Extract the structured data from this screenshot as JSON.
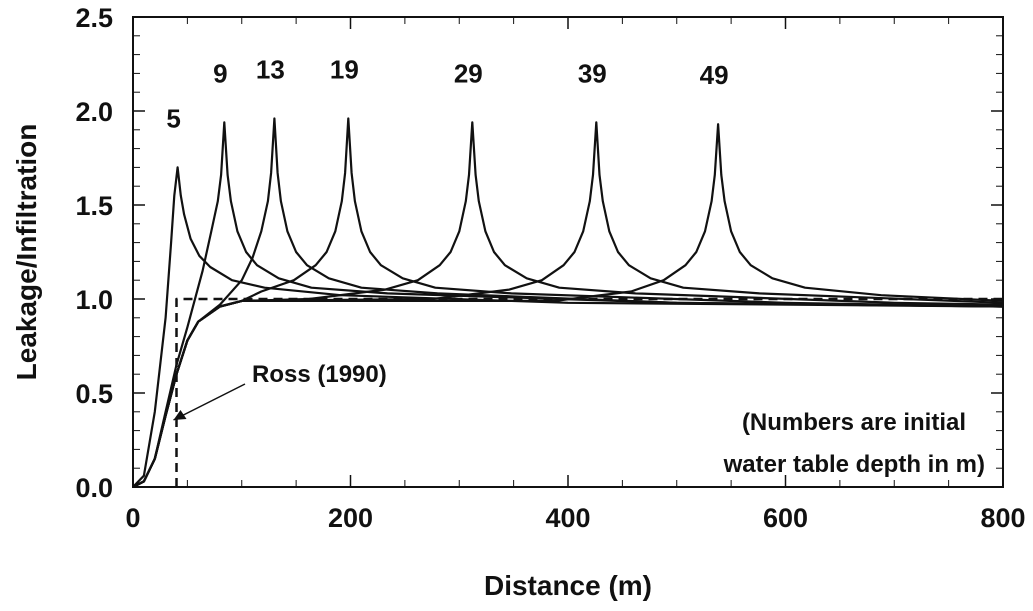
{
  "chart_data": {
    "type": "line",
    "x_label": "Distance (m)",
    "y_label": "Leakage/Infiltration",
    "xlim": [
      0,
      800
    ],
    "xticks": [
      0,
      200,
      400,
      600,
      800
    ],
    "ylim": [
      0,
      2.5
    ],
    "yticks": [
      {
        "value": 0,
        "label": "0.0"
      },
      {
        "value": 0.5,
        "label": "0.5"
      },
      {
        "value": 1,
        "label": "1.0"
      },
      {
        "value": 1.5,
        "label": "1.5"
      },
      {
        "value": 2,
        "label": "2.0"
      },
      {
        "value": 2.5,
        "label": "2.5"
      }
    ],
    "series": [
      {
        "name": "5",
        "color": "#111111",
        "x": [
          0,
          10,
          20,
          30,
          35,
          38,
          41,
          44,
          47,
          53,
          61,
          71,
          91,
          121,
          191,
          400,
          800
        ],
        "values": [
          0,
          0.06,
          0.4,
          0.9,
          1.3,
          1.55,
          1.7,
          1.55,
          1.45,
          1.32,
          1.23,
          1.17,
          1.1,
          1.06,
          1.02,
          0.98,
          0.96
        ]
      },
      {
        "name": "9",
        "color": "#111111",
        "x": [
          0,
          10,
          20,
          30,
          40,
          50,
          64,
          72,
          78,
          81,
          84,
          87,
          90,
          96,
          104,
          114,
          134,
          164,
          234,
          500,
          800
        ],
        "values": [
          0,
          0.03,
          0.15,
          0.4,
          0.65,
          0.85,
          1.15,
          1.36,
          1.52,
          1.66,
          1.94,
          1.66,
          1.52,
          1.36,
          1.25,
          1.18,
          1.11,
          1.06,
          1.03,
          0.98,
          0.96
        ]
      },
      {
        "name": "13",
        "color": "#111111",
        "x": [
          0,
          10,
          20,
          30,
          40,
          50,
          60,
          80,
          100,
          110,
          118,
          124,
          127,
          130,
          133,
          136,
          142,
          150,
          160,
          180,
          210,
          280,
          500,
          800
        ],
        "values": [
          0,
          0.03,
          0.15,
          0.38,
          0.6,
          0.78,
          0.88,
          0.97,
          1.1,
          1.22,
          1.36,
          1.52,
          1.67,
          1.96,
          1.67,
          1.52,
          1.36,
          1.25,
          1.18,
          1.11,
          1.06,
          1.03,
          0.98,
          0.96
        ]
      },
      {
        "name": "19",
        "color": "#111111",
        "x": [
          0,
          10,
          20,
          30,
          40,
          50,
          60,
          80,
          100,
          118,
          148,
          168,
          178,
          186,
          192,
          195,
          198,
          201,
          204,
          210,
          218,
          228,
          248,
          278,
          348,
          600,
          800
        ],
        "values": [
          0,
          0.03,
          0.15,
          0.38,
          0.6,
          0.78,
          0.88,
          0.96,
          0.99,
          1.04,
          1.1,
          1.18,
          1.25,
          1.36,
          1.52,
          1.67,
          1.96,
          1.67,
          1.52,
          1.36,
          1.25,
          1.18,
          1.11,
          1.06,
          1.03,
          0.98,
          0.96
        ]
      },
      {
        "name": "29",
        "color": "#111111",
        "x": [
          0,
          10,
          20,
          30,
          40,
          50,
          60,
          80,
          100,
          162,
          232,
          262,
          282,
          292,
          300,
          306,
          309,
          312,
          315,
          318,
          324,
          332,
          342,
          362,
          392,
          462,
          700,
          800
        ],
        "values": [
          0,
          0.03,
          0.15,
          0.38,
          0.6,
          0.78,
          0.88,
          0.96,
          0.99,
          1.0,
          1.05,
          1.1,
          1.18,
          1.25,
          1.36,
          1.52,
          1.66,
          1.94,
          1.66,
          1.52,
          1.36,
          1.25,
          1.18,
          1.11,
          1.06,
          1.03,
          0.98,
          0.97
        ]
      },
      {
        "name": "39",
        "color": "#111111",
        "x": [
          0,
          10,
          20,
          30,
          40,
          50,
          60,
          80,
          100,
          276,
          346,
          376,
          396,
          406,
          414,
          420,
          423,
          426,
          429,
          432,
          438,
          446,
          456,
          476,
          506,
          576,
          800
        ],
        "values": [
          0,
          0.03,
          0.15,
          0.38,
          0.6,
          0.78,
          0.88,
          0.96,
          0.99,
          1.0,
          1.05,
          1.1,
          1.18,
          1.25,
          1.36,
          1.52,
          1.66,
          1.94,
          1.66,
          1.52,
          1.36,
          1.25,
          1.18,
          1.11,
          1.06,
          1.03,
          0.98
        ]
      },
      {
        "name": "49",
        "color": "#111111",
        "x": [
          0,
          10,
          20,
          30,
          40,
          50,
          60,
          80,
          100,
          388,
          458,
          488,
          508,
          518,
          526,
          532,
          535,
          538,
          541,
          544,
          550,
          558,
          568,
          588,
          618,
          688,
          800
        ],
        "values": [
          0,
          0.03,
          0.15,
          0.38,
          0.6,
          0.78,
          0.88,
          0.96,
          0.99,
          0.99,
          1.04,
          1.1,
          1.18,
          1.25,
          1.36,
          1.52,
          1.66,
          1.93,
          1.66,
          1.52,
          1.36,
          1.25,
          1.18,
          1.11,
          1.06,
          1.02,
          0.99
        ]
      },
      {
        "name": "Ross (1990)",
        "color": "#111111",
        "dashed": true,
        "x": [
          40,
          40,
          800
        ],
        "values": [
          0,
          1,
          1
        ]
      }
    ],
    "annotations": [
      "(Numbers are initial",
      "water table depth in m)"
    ]
  }
}
